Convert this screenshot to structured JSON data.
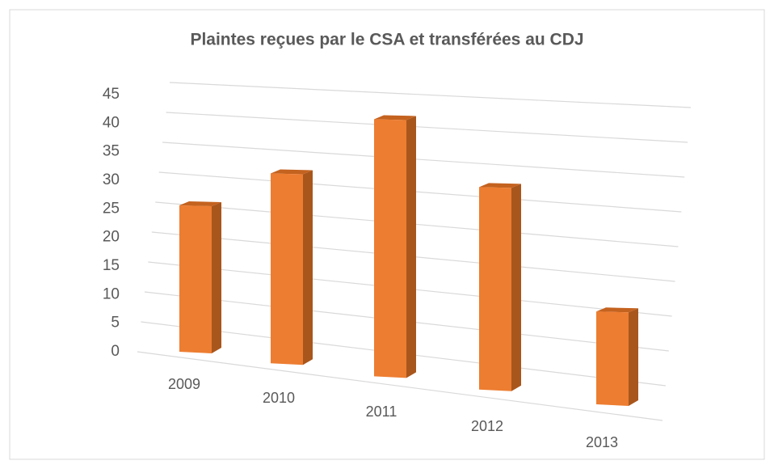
{
  "chart_data": {
    "type": "bar3d",
    "title": "Plaintes reçues par le CSA et transférées au CDJ",
    "categories": [
      "2009",
      "2010",
      "2011",
      "2012",
      "2013"
    ],
    "values": [
      25,
      31,
      40,
      30,
      13
    ],
    "color": "#ed7d31",
    "ylim": [
      0,
      45
    ],
    "yticks": [
      0,
      5,
      10,
      15,
      20,
      25,
      30,
      35,
      40,
      45
    ],
    "grid": true
  }
}
